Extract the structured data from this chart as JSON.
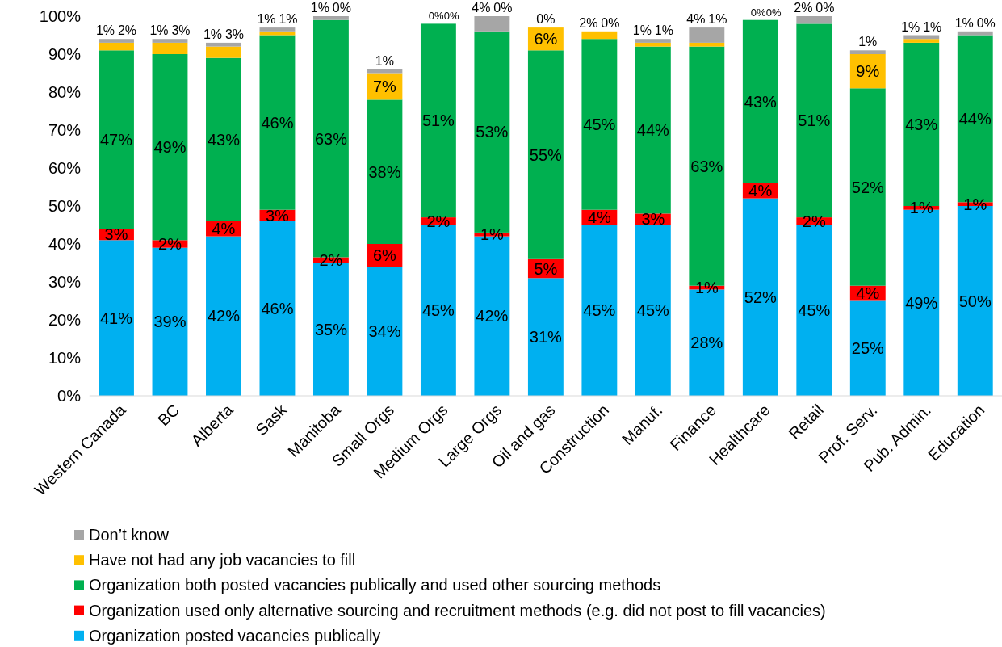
{
  "chart_data": {
    "type": "bar",
    "stacked": true,
    "categories": [
      "Western Canada",
      "BC",
      "Alberta",
      "Sask",
      "Manitoba",
      "Small Orgs",
      "Medium Orgs",
      "Large Orgs",
      "Oil and gas",
      "Construction",
      "Manuf.",
      "Finance",
      "Healthcare",
      "Retail",
      "Prof. Serv.",
      "Pub. Admin.",
      "Education"
    ],
    "series": [
      {
        "name": "Organization posted vacancies publically",
        "color": "#00b0f0",
        "values": [
          41,
          39,
          42,
          46,
          35,
          34,
          45,
          42,
          31,
          45,
          45,
          28,
          52,
          45,
          25,
          49,
          50
        ],
        "value_labels": [
          "41%",
          "39%",
          "42%",
          "46%",
          "35%",
          "34%",
          "45%",
          "42%",
          "31%",
          "45%",
          "45%",
          "28%",
          "52%",
          "45%",
          "25%",
          "49%",
          "50%"
        ]
      },
      {
        "name": "Organization used only alternative sourcing and recruitment methods (e.g. did not post to fill vacancies)",
        "color": "#ff0000",
        "values": [
          3,
          2,
          4,
          3,
          1.5,
          6,
          2,
          1,
          5,
          4,
          3,
          1,
          4,
          2,
          4,
          1,
          1
        ],
        "value_labels": [
          "3%",
          "2%",
          "4%",
          "3%",
          "2%",
          "6%",
          "2%",
          "1%",
          "5%",
          "4%",
          "3%",
          "1%",
          "4%",
          "2%",
          "4%",
          "1%",
          "1%"
        ]
      },
      {
        "name": "Organization both posted vacancies publically and used other sourcing methods",
        "color": "#00b050",
        "values": [
          47,
          49,
          43,
          46,
          62.5,
          38,
          51,
          53,
          55,
          45,
          44,
          63,
          43,
          51,
          52,
          43,
          44
        ],
        "value_labels": [
          "47%",
          "49%",
          "43%",
          "46%",
          "63%",
          "38%",
          "51%",
          "53%",
          "55%",
          "45%",
          "44%",
          "63%",
          "43%",
          "51%",
          "52%",
          "43%",
          "44%"
        ]
      },
      {
        "name": "Have not had any job vacancies to fill",
        "color": "#ffc000",
        "values": [
          2,
          3,
          3,
          1,
          0,
          7,
          0,
          0,
          6,
          2,
          1,
          1,
          0,
          0,
          9,
          1,
          0
        ],
        "value_labels": [
          "2%",
          "3%",
          "3%",
          "1%",
          "0%",
          "7%",
          "0%",
          "0%",
          "6%",
          "2%",
          "1%",
          "1%",
          "0%",
          "0%",
          "9%",
          "1%",
          "0%"
        ]
      },
      {
        "name": "Don’t know",
        "color": "#a6a6a6",
        "values": [
          1,
          1,
          1,
          1,
          1,
          1,
          0,
          4,
          0,
          0,
          1,
          4,
          0,
          2,
          1,
          1,
          1
        ],
        "value_labels": [
          "1%",
          "1%",
          "1%",
          "1%",
          "1%",
          "1%",
          "0%",
          "4%",
          "0%",
          "0%",
          "1%",
          "4%",
          "0%",
          "2%",
          "1%",
          "1%",
          "1%"
        ]
      }
    ],
    "ylim": [
      0,
      100
    ],
    "yticks": [
      {
        "value": 0,
        "label": "0%"
      },
      {
        "value": 10,
        "label": "10%"
      },
      {
        "value": 20,
        "label": "20%"
      },
      {
        "value": 30,
        "label": "30%"
      },
      {
        "value": 40,
        "label": "40%"
      },
      {
        "value": 50,
        "label": "50%"
      },
      {
        "value": 60,
        "label": "60%"
      },
      {
        "value": 70,
        "label": "70%"
      },
      {
        "value": 80,
        "label": "80%"
      },
      {
        "value": 90,
        "label": "90%"
      },
      {
        "value": 100,
        "label": "100%"
      }
    ],
    "legend": "bottom"
  }
}
